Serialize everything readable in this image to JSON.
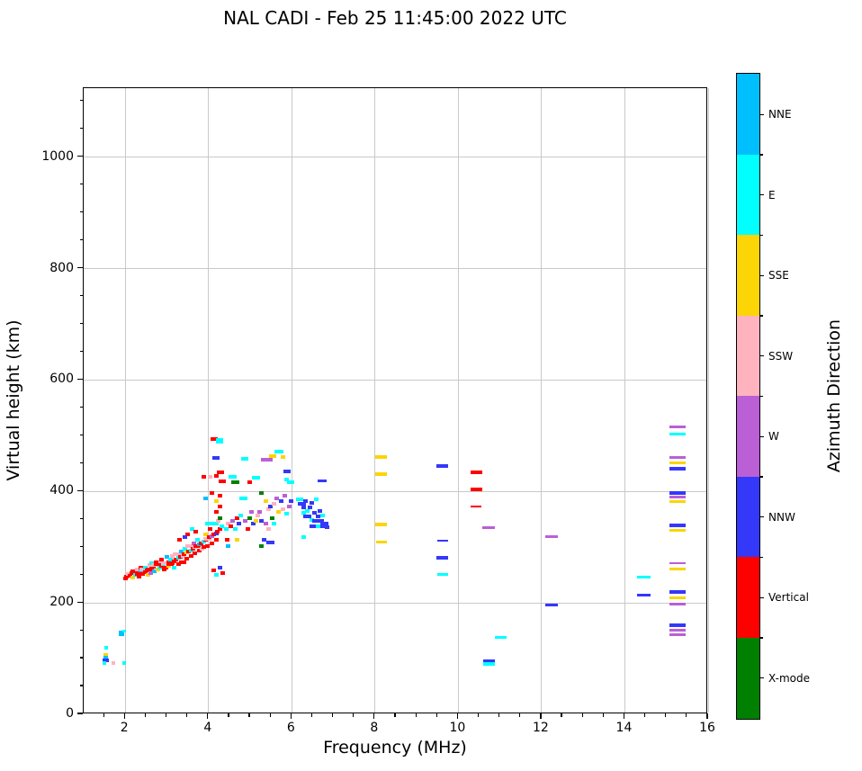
{
  "title": "NAL CADI - Feb 25 11:45:00 2022 UTC",
  "chart_data": {
    "type": "scatter",
    "title": "NAL CADI - Feb 25 11:45:00 2022 UTC",
    "xlabel": "Frequency (MHz)",
    "ylabel": "Virtual height (km)",
    "xlim": [
      1,
      16
    ],
    "ylim": [
      0,
      1124
    ],
    "xticks": [
      2,
      4,
      6,
      8,
      10,
      12,
      14,
      16
    ],
    "yticks": [
      0,
      200,
      400,
      600,
      800,
      1000
    ],
    "x_minor_step": 0.5,
    "y_minor_step": 50,
    "grid": true,
    "grid_color": "#c9c9c9",
    "colorbar": {
      "label": "Azimuth Direction",
      "categories_top_to_bottom": [
        {
          "name": "NNE",
          "color": "#00BFFF"
        },
        {
          "name": "E",
          "color": "#00FFFF"
        },
        {
          "name": "SSE",
          "color": "#FBD505"
        },
        {
          "name": "SSW",
          "color": "#FFB3BE"
        },
        {
          "name": "W",
          "color": "#BA5FD6"
        },
        {
          "name": "NNW",
          "color": "#3438F8"
        },
        {
          "name": "Vertical",
          "color": "#FF0000"
        },
        {
          "name": "X-mode",
          "color": "#008000"
        }
      ]
    },
    "direction_colors": {
      "NNE": "#00BFFF",
      "E": "#00FFFF",
      "SSE": "#FBD505",
      "SSW": "#FFB3BE",
      "W": "#BA5FD6",
      "NNW": "#3438F8",
      "V": "#FF0000",
      "X": "#008000"
    },
    "point_format": "[freq_MHz, height_km, direction, width_px(optional), height_px(optional)]",
    "points": [
      [
        1.92,
        143,
        "NNE",
        6,
        6
      ],
      [
        2.0,
        147,
        "E",
        4,
        3
      ],
      [
        1.57,
        118,
        "E",
        4,
        4
      ],
      [
        1.56,
        105,
        "SSE",
        5,
        4
      ],
      [
        1.55,
        100,
        "NNE",
        5,
        4
      ],
      [
        1.56,
        95,
        "NNW",
        7,
        4
      ],
      [
        1.52,
        90,
        "E",
        4,
        4
      ],
      [
        1.73,
        90,
        "SSW",
        4,
        4
      ],
      [
        1.99,
        90,
        "E",
        4,
        4
      ],
      [
        2.02,
        242,
        "V"
      ],
      [
        2.05,
        246,
        "V"
      ],
      [
        2.1,
        250,
        "SSW"
      ],
      [
        2.14,
        247,
        "V"
      ],
      [
        2.18,
        252,
        "V"
      ],
      [
        2.2,
        244,
        "SSE"
      ],
      [
        2.24,
        255,
        "V",
        8
      ],
      [
        2.26,
        248,
        "E"
      ],
      [
        2.3,
        250,
        "V"
      ],
      [
        2.3,
        258,
        "SSW"
      ],
      [
        2.34,
        252,
        "V"
      ],
      [
        2.36,
        245,
        "V"
      ],
      [
        2.4,
        256,
        "NNE"
      ],
      [
        2.4,
        262,
        "V"
      ],
      [
        2.44,
        250,
        "V"
      ],
      [
        2.46,
        258,
        "SSW",
        9
      ],
      [
        2.5,
        253,
        "V"
      ],
      [
        2.5,
        262,
        "E"
      ],
      [
        2.54,
        256,
        "V"
      ],
      [
        2.56,
        248,
        "SSE"
      ],
      [
        2.6,
        258,
        "V",
        8
      ],
      [
        2.6,
        266,
        "SSW"
      ],
      [
        2.63,
        252,
        "W"
      ],
      [
        2.66,
        260,
        "V"
      ],
      [
        2.66,
        270,
        "E"
      ],
      [
        2.7,
        263,
        "V"
      ],
      [
        2.72,
        255,
        "NNE"
      ],
      [
        2.74,
        266,
        "SSW",
        10
      ],
      [
        2.76,
        272,
        "V"
      ],
      [
        2.8,
        258,
        "SSE"
      ],
      [
        2.8,
        268,
        "V",
        8
      ],
      [
        2.84,
        262,
        "E"
      ],
      [
        2.86,
        273,
        "SSW"
      ],
      [
        2.9,
        265,
        "V"
      ],
      [
        2.9,
        276,
        "V"
      ],
      [
        2.94,
        268,
        "E"
      ],
      [
        2.96,
        258,
        "V"
      ],
      [
        3.0,
        270,
        "SSW",
        11
      ],
      [
        3.0,
        262,
        "V"
      ],
      [
        3.02,
        281,
        "NNE"
      ],
      [
        3.06,
        272,
        "V"
      ],
      [
        3.06,
        265,
        "SSE"
      ],
      [
        3.1,
        276,
        "E"
      ],
      [
        3.1,
        268,
        "V",
        8
      ],
      [
        3.14,
        270,
        "V"
      ],
      [
        3.16,
        283,
        "SSW"
      ],
      [
        3.2,
        273,
        "V"
      ],
      [
        3.2,
        262,
        "E"
      ],
      [
        3.24,
        276,
        "V"
      ],
      [
        3.26,
        286,
        "SSW",
        10
      ],
      [
        3.3,
        279,
        "E"
      ],
      [
        3.3,
        268,
        "V"
      ],
      [
        3.34,
        281,
        "V"
      ],
      [
        3.36,
        291,
        "NNE"
      ],
      [
        3.4,
        283,
        "SSW"
      ],
      [
        3.4,
        272,
        "V",
        8
      ],
      [
        3.44,
        286,
        "V"
      ],
      [
        3.46,
        296,
        "E"
      ],
      [
        3.5,
        289,
        "SSE"
      ],
      [
        3.5,
        278,
        "V"
      ],
      [
        3.54,
        291,
        "V"
      ],
      [
        3.56,
        301,
        "SSW",
        9
      ],
      [
        3.6,
        293,
        "E"
      ],
      [
        3.6,
        282,
        "V"
      ],
      [
        3.64,
        296,
        "V"
      ],
      [
        3.66,
        306,
        "W"
      ],
      [
        3.7,
        299,
        "SSW"
      ],
      [
        3.7,
        288,
        "V"
      ],
      [
        3.74,
        301,
        "V",
        8
      ],
      [
        3.76,
        311,
        "E"
      ],
      [
        3.8,
        303,
        "NNE"
      ],
      [
        3.8,
        292,
        "V"
      ],
      [
        3.52,
        321,
        "V"
      ],
      [
        3.62,
        331,
        "E"
      ],
      [
        3.72,
        326,
        "V"
      ],
      [
        3.46,
        316,
        "NNW"
      ],
      [
        3.32,
        311,
        "V"
      ],
      [
        3.84,
        306,
        "V"
      ],
      [
        3.86,
        296,
        "SSW"
      ],
      [
        3.9,
        308,
        "E"
      ],
      [
        3.9,
        298,
        "V"
      ],
      [
        3.94,
        311,
        "V"
      ],
      [
        3.96,
        321,
        "SSE"
      ],
      [
        4.0,
        313,
        "SSW",
        9
      ],
      [
        4.0,
        301,
        "V"
      ],
      [
        4.0,
        341,
        "E"
      ],
      [
        4.04,
        316,
        "V"
      ],
      [
        4.06,
        331,
        "V"
      ],
      [
        4.1,
        318,
        "W"
      ],
      [
        4.1,
        305,
        "V"
      ],
      [
        4.14,
        321,
        "V"
      ],
      [
        4.16,
        341,
        "E",
        10
      ],
      [
        4.2,
        323,
        "NNW"
      ],
      [
        4.2,
        311,
        "V"
      ],
      [
        4.2,
        361,
        "V"
      ],
      [
        4.24,
        326,
        "V"
      ],
      [
        4.26,
        346,
        "SSW"
      ],
      [
        4.3,
        331,
        "V"
      ],
      [
        4.3,
        371,
        "V"
      ],
      [
        4.3,
        391,
        "V"
      ],
      [
        4.34,
        336,
        "E"
      ],
      [
        4.35,
        416,
        "V",
        8
      ],
      [
        4.2,
        426,
        "V"
      ],
      [
        4.3,
        433,
        "V",
        8
      ],
      [
        4.05,
        424,
        "SSW"
      ],
      [
        3.9,
        425,
        "V"
      ],
      [
        4.2,
        381,
        "SSE"
      ],
      [
        4.1,
        396,
        "V"
      ],
      [
        3.95,
        386,
        "NNE"
      ],
      [
        4.3,
        351,
        "X"
      ],
      [
        4.15,
        256,
        "V"
      ],
      [
        4.2,
        248,
        "E"
      ],
      [
        4.3,
        261,
        "NNW"
      ],
      [
        4.36,
        252,
        "V"
      ],
      [
        4.44,
        331,
        "E"
      ],
      [
        4.46,
        311,
        "V"
      ],
      [
        4.5,
        341,
        "SSW"
      ],
      [
        4.5,
        301,
        "NNE"
      ],
      [
        4.55,
        336,
        "V"
      ],
      [
        4.6,
        424,
        "E",
        9
      ],
      [
        4.66,
        415,
        "X",
        9
      ],
      [
        4.6,
        346,
        "W"
      ],
      [
        4.66,
        331,
        "E"
      ],
      [
        4.7,
        351,
        "V"
      ],
      [
        4.7,
        311,
        "SSE"
      ],
      [
        4.76,
        341,
        "NNW"
      ],
      [
        4.8,
        356,
        "E"
      ],
      [
        4.86,
        386,
        "E",
        9
      ],
      [
        4.9,
        457,
        "E",
        8
      ],
      [
        4.9,
        346,
        "W"
      ],
      [
        4.96,
        331,
        "V"
      ],
      [
        5.0,
        415,
        "V"
      ],
      [
        5.0,
        351,
        "X"
      ],
      [
        5.06,
        361,
        "W"
      ],
      [
        5.1,
        341,
        "NNW"
      ],
      [
        5.16,
        423,
        "E",
        9
      ],
      [
        5.16,
        346,
        "SSE"
      ],
      [
        5.2,
        356,
        "SSW"
      ],
      [
        5.24,
        361,
        "W"
      ],
      [
        5.3,
        396,
        "X"
      ],
      [
        5.3,
        346,
        "NNW"
      ],
      [
        5.36,
        455,
        "W",
        8
      ],
      [
        5.4,
        381,
        "SSE"
      ],
      [
        5.4,
        341,
        "W"
      ],
      [
        5.46,
        366,
        "SSW"
      ],
      [
        5.5,
        455,
        "W"
      ],
      [
        5.5,
        371,
        "NNW"
      ],
      [
        5.56,
        462,
        "SSE",
        8
      ],
      [
        5.56,
        351,
        "X"
      ],
      [
        5.6,
        376,
        "SSW"
      ],
      [
        5.6,
        341,
        "E"
      ],
      [
        5.66,
        386,
        "W"
      ],
      [
        5.72,
        470,
        "E",
        10
      ],
      [
        5.7,
        361,
        "SSE"
      ],
      [
        5.76,
        381,
        "NNW"
      ],
      [
        5.8,
        460,
        "SSE"
      ],
      [
        5.8,
        366,
        "SSW"
      ],
      [
        5.86,
        391,
        "W"
      ],
      [
        5.9,
        434,
        "NNW",
        8
      ],
      [
        5.9,
        420,
        "E"
      ],
      [
        5.9,
        358,
        "E"
      ],
      [
        5.96,
        371,
        "W"
      ],
      [
        6.0,
        415,
        "E",
        8
      ],
      [
        6.0,
        381,
        "NNW"
      ],
      [
        5.46,
        331,
        "SSW"
      ],
      [
        5.36,
        311,
        "NNW"
      ],
      [
        5.5,
        307,
        "NNW",
        9
      ],
      [
        5.3,
        301,
        "X"
      ],
      [
        6.2,
        384,
        "E",
        8
      ],
      [
        6.26,
        376,
        "NNW",
        9
      ],
      [
        6.3,
        370,
        "NNW"
      ],
      [
        6.3,
        360,
        "E"
      ],
      [
        6.36,
        381,
        "NNW"
      ],
      [
        6.4,
        363,
        "E"
      ],
      [
        6.4,
        354,
        "NNW",
        9
      ],
      [
        6.46,
        370,
        "NNW"
      ],
      [
        6.5,
        347,
        "E"
      ],
      [
        6.5,
        378,
        "NNW"
      ],
      [
        6.56,
        336,
        "NNW",
        10
      ],
      [
        6.56,
        360,
        "NNW"
      ],
      [
        6.6,
        384,
        "E"
      ],
      [
        6.6,
        345,
        "NNW",
        9
      ],
      [
        6.66,
        354,
        "NNW"
      ],
      [
        6.66,
        336,
        "E"
      ],
      [
        6.7,
        363,
        "NNW"
      ],
      [
        6.7,
        345,
        "NNW",
        8
      ],
      [
        6.76,
        336,
        "NNW"
      ],
      [
        6.76,
        355,
        "E"
      ],
      [
        6.8,
        340,
        "NNW",
        9
      ],
      [
        6.86,
        334,
        "NNW"
      ],
      [
        6.3,
        317,
        "E"
      ],
      [
        6.74,
        417,
        "NNW",
        10,
        3
      ],
      [
        4.16,
        492,
        "V",
        8
      ],
      [
        4.28,
        490,
        "E",
        8,
        6
      ],
      [
        4.2,
        458,
        "NNW",
        8
      ],
      [
        8.17,
        460,
        "SSE",
        13
      ],
      [
        8.17,
        430,
        "SSE",
        13
      ],
      [
        8.17,
        339,
        "SSE",
        13
      ],
      [
        8.17,
        308,
        "SSE",
        12,
        3
      ],
      [
        9.64,
        444,
        "NNW",
        13
      ],
      [
        9.64,
        310,
        "NNW",
        12,
        2
      ],
      [
        9.64,
        280,
        "NNW",
        13
      ],
      [
        9.64,
        249,
        "E",
        12,
        3
      ],
      [
        10.45,
        433,
        "V",
        13
      ],
      [
        10.45,
        402,
        "V",
        13
      ],
      [
        10.45,
        372,
        "V",
        12,
        2
      ],
      [
        10.75,
        333,
        "W",
        14,
        3
      ],
      [
        12.26,
        317,
        "W",
        14,
        3
      ],
      [
        12.26,
        195,
        "NNW",
        14,
        3
      ],
      [
        10.75,
        94,
        "NNW",
        13
      ],
      [
        10.75,
        89,
        "E",
        13
      ],
      [
        11.03,
        137,
        "E",
        13,
        3
      ],
      [
        14.48,
        245,
        "E",
        15,
        3
      ],
      [
        14.48,
        212,
        "NNW",
        15,
        3
      ],
      [
        15.28,
        514,
        "W",
        18,
        3
      ],
      [
        15.28,
        502,
        "E",
        18,
        3
      ],
      [
        15.28,
        459,
        "W",
        18,
        3
      ],
      [
        15.28,
        449,
        "SSE",
        18,
        3
      ],
      [
        15.28,
        439,
        "NNW",
        18,
        4
      ],
      [
        15.28,
        396,
        "NNW",
        18,
        4
      ],
      [
        15.28,
        389,
        "W",
        18,
        3
      ],
      [
        15.28,
        380,
        "SSE",
        18,
        3
      ],
      [
        15.28,
        338,
        "NNW",
        18,
        4
      ],
      [
        15.28,
        328,
        "SSE",
        18,
        3
      ],
      [
        15.28,
        270,
        "W",
        18,
        2
      ],
      [
        15.28,
        260,
        "SSE",
        18,
        3
      ],
      [
        15.28,
        218,
        "NNW",
        18,
        4
      ],
      [
        15.28,
        207,
        "SSE",
        18,
        3
      ],
      [
        15.28,
        197,
        "W",
        18,
        3
      ],
      [
        15.28,
        158,
        "NNW",
        18,
        4
      ],
      [
        15.28,
        149,
        "W",
        18,
        3
      ],
      [
        15.28,
        141,
        "W",
        18,
        3
      ]
    ]
  }
}
